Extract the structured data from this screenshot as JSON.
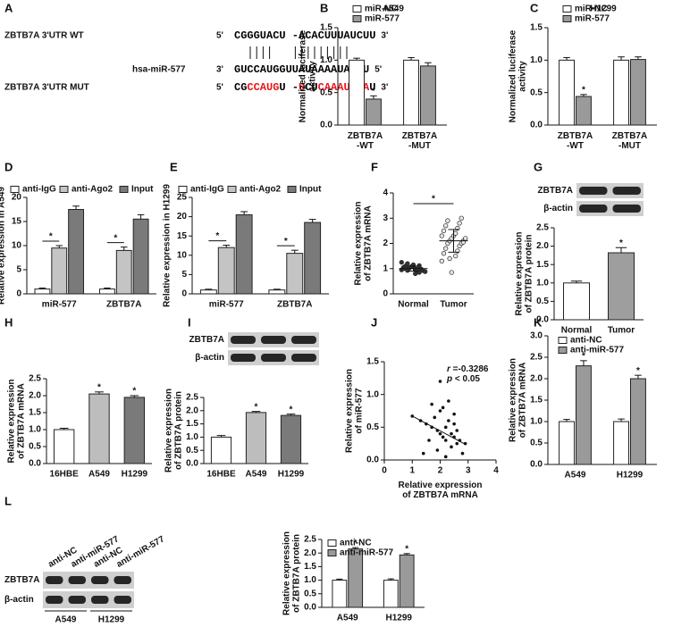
{
  "sequence_panel": {
    "panel": "A",
    "rows": [
      {
        "name": "ZBTB7A 3'UTR WT",
        "left": "5'",
        "segments": [
          {
            "text": "CGGGUACU -ACACUUUAUCUU",
            "color": "#000000"
          }
        ],
        "right": "3'"
      },
      {
        "name": "hsa-miR-577",
        "left": "3'",
        "segments": [
          {
            "text": "GUCCAUGGUUAUAAAAUAGAU",
            "color": "#000000"
          }
        ],
        "right": "5'"
      },
      {
        "name": "ZBTB7A 3'UTR MUT",
        "left": "5'",
        "segments": [
          {
            "text": "CG",
            "color": "#000000"
          },
          {
            "text": "CCAUG",
            "color": "#e8141b"
          },
          {
            "text": "U -",
            "color": "#000000"
          },
          {
            "text": "U",
            "color": "#e8141b"
          },
          {
            "text": "CU",
            "color": "#000000"
          },
          {
            "text": "C",
            "color": "#e8141b"
          },
          {
            "text": "AAAUAGA",
            "color": "#e8141b"
          },
          {
            "text": "U",
            "color": "#000000"
          }
        ],
        "right": "3'"
      }
    ]
  },
  "western_blot": {
    "panel": "L",
    "rows": [
      "ZBTB7A",
      "β-actin"
    ],
    "lanes": [
      "anti-NC",
      "anti-miR-577",
      "anti-NC",
      "anti-miR-577"
    ],
    "groups": [
      "A549",
      "H1299"
    ]
  },
  "chart_data": [
    {
      "type": "bar",
      "panel": "B",
      "title": "A549",
      "y_label": "Normalized luciferase\nactivity",
      "categories": [
        "ZBTB7A\n-WT",
        "ZBTB7A\n-MUT"
      ],
      "series": [
        {
          "name": "miR-NC",
          "color": "#ffffff",
          "values": [
            1.0,
            1.0
          ],
          "errors": [
            0.03,
            0.04
          ],
          "significance": [
            null,
            null
          ]
        },
        {
          "name": "miR-577",
          "color": "#9a9a9a",
          "values": [
            0.4,
            0.91
          ],
          "errors": [
            0.05,
            0.05
          ],
          "significance": [
            "*",
            null
          ]
        }
      ],
      "ylim": [
        0,
        1.5
      ],
      "yticks": [
        {
          "value": 0,
          "label": "0.0"
        },
        0.5,
        {
          "value": 1,
          "label": "1.0"
        },
        1.5
      ],
      "legend": "top-left"
    },
    {
      "type": "bar",
      "panel": "C",
      "title": "H1299",
      "y_label": "Normalized luciferase\nactivity",
      "categories": [
        "ZBTB7A\n-WT",
        "ZBTB7A\n-MUT"
      ],
      "series": [
        {
          "name": "miR-NC",
          "color": "#ffffff",
          "values": [
            1.0,
            1.0
          ],
          "errors": [
            0.04,
            0.05
          ],
          "significance": [
            null,
            null
          ]
        },
        {
          "name": "miR-577",
          "color": "#9a9a9a",
          "values": [
            0.44,
            1.01
          ],
          "errors": [
            0.03,
            0.04
          ],
          "significance": [
            "*",
            null
          ]
        }
      ],
      "ylim": [
        0,
        1.5
      ],
      "yticks": [
        {
          "value": 0,
          "label": "0.0"
        },
        0.5,
        {
          "value": 1,
          "label": "1.0"
        },
        1.5
      ],
      "legend": "top-left"
    },
    {
      "type": "bar",
      "panel": "D",
      "y_label": "Relative expression in A549",
      "categories": [
        "miR-577",
        "ZBTB7A"
      ],
      "series": [
        {
          "name": "anti-IgG",
          "color": "#ffffff",
          "values": [
            1.0,
            1.0
          ],
          "errors": [
            0.2,
            0.2
          ],
          "significance": [
            null,
            null
          ]
        },
        {
          "name": "anti-Ago2",
          "color": "#c4c4c4",
          "values": [
            9.5,
            9.0
          ],
          "errors": [
            0.5,
            0.7
          ],
          "significance": [
            "*",
            "*"
          ]
        },
        {
          "name": "Input",
          "color": "#7a7a7a",
          "values": [
            17.5,
            15.5
          ],
          "errors": [
            0.7,
            0.9
          ],
          "significance": [
            null,
            null
          ]
        }
      ],
      "ylim": [
        0,
        20
      ],
      "yticks": [
        0,
        5,
        10,
        15,
        20
      ],
      "legend": "top",
      "significance_bracket": true
    },
    {
      "type": "bar",
      "panel": "E",
      "y_label": "Relative expression in H1299",
      "categories": [
        "miR-577",
        "ZBTB7A"
      ],
      "series": [
        {
          "name": "anti-IgG",
          "color": "#ffffff",
          "values": [
            1.0,
            1.0
          ],
          "errors": [
            0.2,
            0.2
          ],
          "significance": [
            null,
            null
          ]
        },
        {
          "name": "anti-Ago2",
          "color": "#c4c4c4",
          "values": [
            12.0,
            10.5
          ],
          "errors": [
            0.6,
            0.8
          ],
          "significance": [
            "*",
            "*"
          ]
        },
        {
          "name": "Input",
          "color": "#7a7a7a",
          "values": [
            20.5,
            18.5
          ],
          "errors": [
            0.8,
            0.8
          ],
          "significance": [
            null,
            null
          ]
        }
      ],
      "ylim": [
        0,
        25
      ],
      "yticks": [
        0,
        5,
        10,
        15,
        20,
        25
      ],
      "legend": "top",
      "significance_bracket": true
    },
    {
      "type": "strip",
      "panel": "F",
      "y_label": "Relative expression\nof ZBTB7A mRNA",
      "categories": [
        "Normal",
        "Tumor"
      ],
      "values": [
        [
          0.95,
          1.0,
          1.05,
          0.9,
          1.1,
          0.85,
          1.2,
          0.98,
          1.02,
          0.92,
          1.08,
          0.88,
          1.15,
          1.25,
          0.8,
          1.0,
          0.97,
          1.03,
          1.12,
          0.93
        ],
        [
          1.3,
          1.5,
          1.6,
          1.7,
          1.8,
          1.9,
          2.0,
          2.0,
          2.1,
          2.1,
          2.2,
          2.2,
          2.3,
          2.3,
          2.4,
          2.5,
          2.6,
          2.7,
          2.8,
          2.9,
          3.0,
          1.4,
          2.05,
          0.85
        ]
      ],
      "means": [
        1.0,
        2.1
      ],
      "sd": [
        0.1,
        0.45
      ],
      "colors": [
        "#333333",
        "#e6e6e6"
      ],
      "significance": "*",
      "ylim": [
        0,
        4
      ],
      "yticks": [
        0,
        1,
        2,
        3,
        4
      ]
    },
    {
      "type": "bar",
      "panel": "G",
      "y_label": "Relative expression\nof ZBTB7A protein",
      "categories": [
        "Normal",
        "Tumor"
      ],
      "values": [
        1.0,
        1.82
      ],
      "errors": [
        0.05,
        0.14
      ],
      "colors": [
        "#ffffff",
        "#9e9e9e"
      ],
      "significance": [
        null,
        "*"
      ],
      "blot": {
        "rows": [
          "ZBTB7A",
          "β-actin"
        ]
      },
      "ylim": [
        0,
        2.5
      ],
      "yticks": [
        {
          "value": 0,
          "label": "0.0"
        },
        0.5,
        {
          "value": 1,
          "label": "1.0"
        },
        1.5,
        {
          "value": 2,
          "label": "2.0"
        },
        2.5
      ]
    },
    {
      "type": "bar",
      "panel": "H",
      "y_label": "Relative expression\nof ZBTB7A mRNA",
      "categories": [
        "16HBE",
        "A549",
        "H1299"
      ],
      "values": [
        1.0,
        2.05,
        1.95
      ],
      "errors": [
        0.04,
        0.06,
        0.05
      ],
      "colors": [
        "#ffffff",
        "#bdbdbd",
        "#7a7a7a"
      ],
      "significance": [
        null,
        "*",
        "*"
      ],
      "ylim": [
        0,
        2.5
      ],
      "yticks": [
        {
          "value": 0,
          "label": "0.0"
        },
        0.5,
        {
          "value": 1,
          "label": "1.0"
        },
        1.5,
        {
          "value": 2,
          "label": "2.0"
        },
        2.5
      ]
    },
    {
      "type": "bar",
      "panel": "I",
      "y_label": "Relative expression\nof ZBTB7A protein",
      "categories": [
        "16HBE",
        "A549",
        "H1299"
      ],
      "values": [
        1.0,
        1.93,
        1.82
      ],
      "errors": [
        0.06,
        0.04,
        0.05
      ],
      "colors": [
        "#ffffff",
        "#bdbdbd",
        "#7a7a7a"
      ],
      "significance": [
        null,
        "*",
        "*"
      ],
      "blot": {
        "rows": [
          "ZBTB7A",
          "β-actin"
        ]
      },
      "ylim": [
        0,
        2.5
      ],
      "yticks": [
        {
          "value": 0,
          "label": "0.0"
        },
        0.5,
        {
          "value": 1,
          "label": "1.0"
        },
        1.5,
        {
          "value": 2,
          "label": "2.0"
        },
        2.5
      ]
    },
    {
      "type": "scatter",
      "panel": "J",
      "y_label": "Relative expression\nof miR-577",
      "x_label": "Relative expression\nof ZBTB7A mRNA",
      "x": [
        1.0,
        1.3,
        1.5,
        1.6,
        1.7,
        1.8,
        1.9,
        2.0,
        2.0,
        2.1,
        2.1,
        2.2,
        2.2,
        2.3,
        2.3,
        2.4,
        2.4,
        2.5,
        2.5,
        2.6,
        2.6,
        2.7,
        2.8,
        2.9,
        1.4,
        1.9,
        2.2,
        2.0,
        1.7,
        2.5
      ],
      "y": [
        0.67,
        0.6,
        0.55,
        0.3,
        0.5,
        0.65,
        0.45,
        0.4,
        1.2,
        0.35,
        0.8,
        0.5,
        0.3,
        0.6,
        0.9,
        0.4,
        0.2,
        0.35,
        0.55,
        0.25,
        0.45,
        0.3,
        0.1,
        0.25,
        0.1,
        0.15,
        0.05,
        0.75,
        0.85,
        0.7
      ],
      "fit_line": {
        "x": [
          1.0,
          2.9
        ],
        "y": [
          0.67,
          0.24
        ]
      },
      "stats": [
        "r =-0.3286",
        "p < 0.05"
      ],
      "xlim": [
        0,
        4
      ],
      "xticks": [
        0,
        1,
        2,
        3,
        4
      ],
      "ylim": [
        0,
        1.5
      ],
      "yticks": [
        {
          "value": 0,
          "label": "0.0"
        },
        0.5,
        {
          "value": 1,
          "label": "1.0"
        },
        1.5
      ]
    },
    {
      "type": "bar",
      "panel": "K",
      "y_label": "Relative expression\nof ZBTB7A mRNA",
      "categories": [
        "A549",
        "H1299"
      ],
      "series": [
        {
          "name": "anti-NC",
          "color": "#ffffff",
          "values": [
            1.0,
            1.0
          ],
          "errors": [
            0.05,
            0.06
          ],
          "significance": [
            null,
            null
          ]
        },
        {
          "name": "anti-miR-577",
          "color": "#9a9a9a",
          "values": [
            2.3,
            2.0
          ],
          "errors": [
            0.12,
            0.08
          ],
          "significance": [
            "*",
            "*"
          ]
        }
      ],
      "ylim": [
        0,
        3
      ],
      "yticks": [
        {
          "value": 0,
          "label": "0.0"
        },
        0.5,
        {
          "value": 1,
          "label": "1.0"
        },
        1.5,
        {
          "value": 2,
          "label": "2.0"
        },
        2.5,
        {
          "value": 3,
          "label": "3.0"
        }
      ],
      "legend": "upper-left"
    },
    {
      "type": "bar",
      "y_label": "Relative expression\nof ZBTB7A protein",
      "categories": [
        "A549",
        "H1299"
      ],
      "series": [
        {
          "name": "anti-NC",
          "color": "#ffffff",
          "values": [
            1.0,
            1.0
          ],
          "errors": [
            0.04,
            0.05
          ],
          "significance": [
            null,
            null
          ]
        },
        {
          "name": "anti-miR-577",
          "color": "#9a9a9a",
          "values": [
            2.15,
            1.93
          ],
          "errors": [
            0.05,
            0.05
          ],
          "significance": [
            "*",
            "*"
          ]
        }
      ],
      "ylim": [
        0,
        2.5
      ],
      "yticks": [
        {
          "value": 0,
          "label": "0.0"
        },
        0.5,
        {
          "value": 1,
          "label": "1.0"
        },
        1.5,
        {
          "value": 2,
          "label": "2.0"
        },
        2.5
      ],
      "legend": "upper-left"
    }
  ]
}
